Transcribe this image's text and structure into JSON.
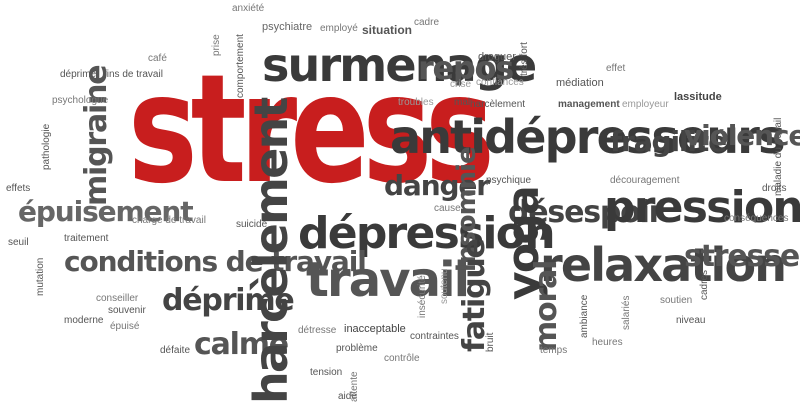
{
  "cloud": {
    "words": {
      "stress": "stress",
      "surmenage": "surmenage",
      "repos": "repos",
      "antidepresseurs": "antidépresseurs",
      "fragilite": "fragilité",
      "violence": "violence",
      "migraine": "migraine",
      "epuisement": "épuisement",
      "danger": "danger",
      "harcelement": "harcèlement",
      "depression": "dépression",
      "insomnie": "insomnie",
      "desespoir": "désespoir",
      "pression": "pression",
      "conditions_de_travail": "conditions de travail",
      "travail": "travail",
      "yoga": "yoga",
      "relaxation": "relaxation",
      "stresse": "stresse",
      "deprime": "déprime",
      "calme": "calme",
      "fatigue": "fatigue",
      "moral": "moral",
      "psychiatre": "psychiatre",
      "employe": "employé",
      "situation": "situation",
      "cadre": "cadre",
      "anxiete": "anxiété",
      "droguer": "droguer",
      "confiances": "confiances",
      "mediation": "médiation",
      "management": "management",
      "employeur": "employeur",
      "lassitude": "lassitude",
      "deprime_small": "déprimé",
      "fins_de_travail": "fins de travail",
      "psychologue": "psychologue",
      "troubles": "troubles",
      "harcelement_small": "harcèlement",
      "pathologie": "pathologie",
      "psychique": "psychique",
      "decouragement": "découragement",
      "effets": "effets",
      "droits": "droits",
      "maladie_du_travail": "maladie du travail",
      "consequences": "conséquences",
      "charge_de_travail": "charge de travail",
      "suicide": "suicide",
      "cause": "cause",
      "traitement": "traitement",
      "seuil": "seuil",
      "epuise": "épuisé",
      "souvenir": "souvenir",
      "conseiller": "conseiller",
      "moderne": "moderne",
      "insecurite": "insécurité",
      "detresse": "détresse",
      "inacceptable": "inacceptable",
      "probleme": "problème",
      "contraintes": "contraintes",
      "bruit": "bruit",
      "defaite": "défaite",
      "tension": "tension",
      "controle": "contrôle",
      "temps": "temps",
      "soutien": "soutien",
      "cadres": "cadres",
      "niveau": "niveau",
      "effet": "effet",
      "comportement": "comportement",
      "prise": "prise",
      "crise": "crise",
      "cafe": "café",
      "mal": "mal",
      "aide": "aide",
      "tres_fort": "très fort",
      "mutation": "mutation",
      "ambiance": "ambiance",
      "salaries": "salariés",
      "soutenu": "soutenu",
      "heures": "heures",
      "attente": "attente"
    },
    "colors": {
      "red": "#c81e1e",
      "dark": "#3a3a3a",
      "gray": "#6a6a6a",
      "light": "#9a9a9a",
      "background": "#ffffff"
    }
  }
}
